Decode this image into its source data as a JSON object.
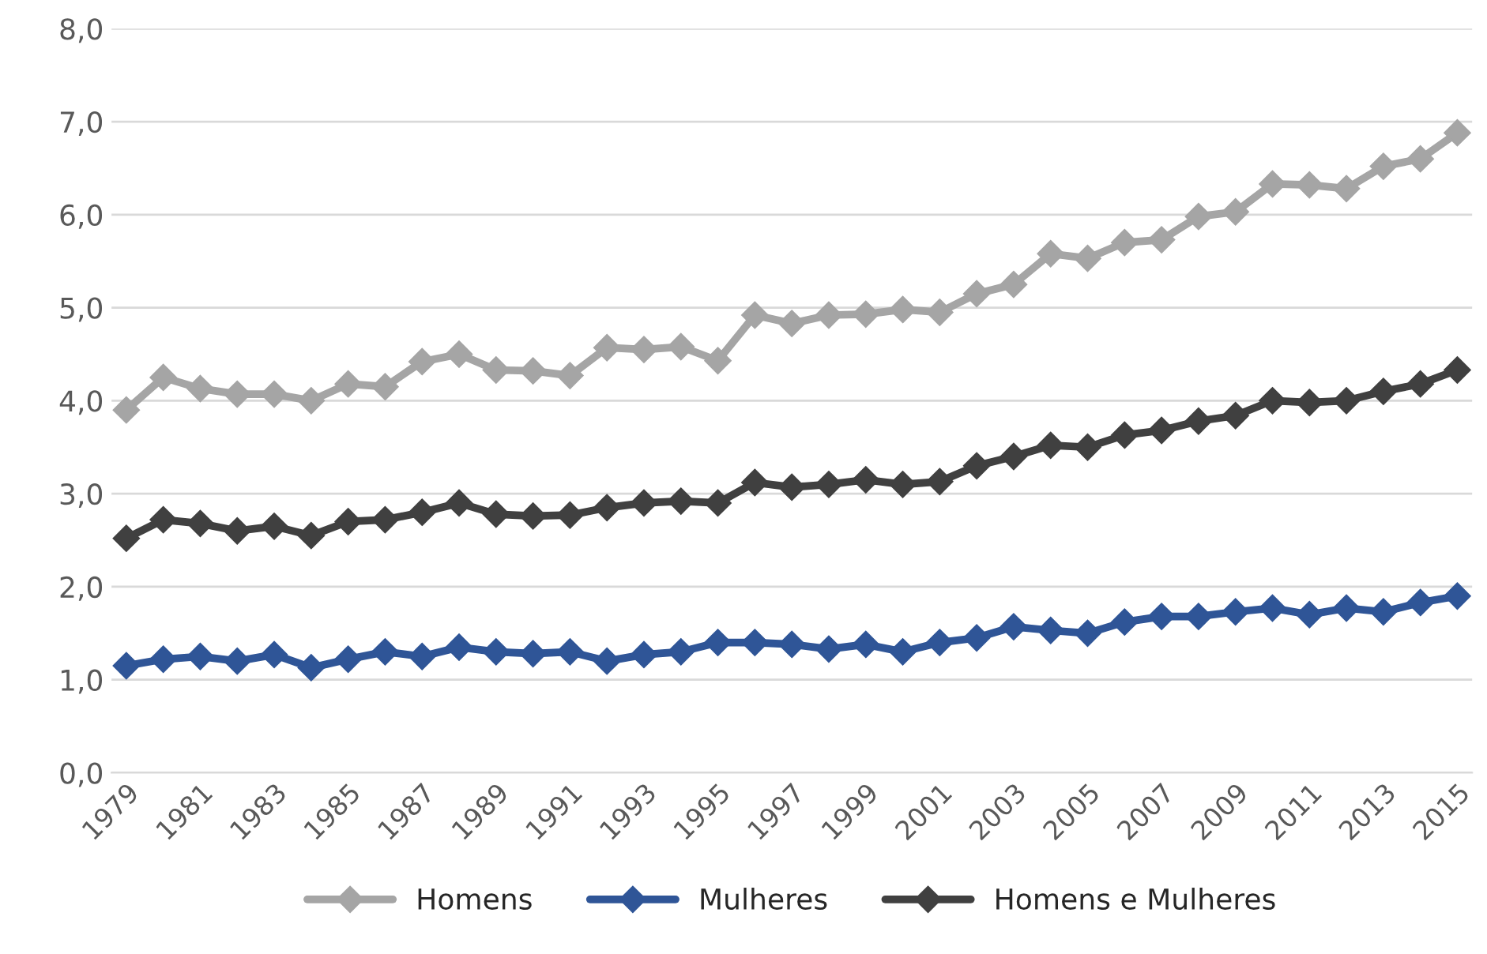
{
  "chart_data": {
    "type": "line",
    "categories": [
      "1979",
      null,
      "1981",
      null,
      "1983",
      null,
      "1985",
      null,
      "1987",
      null,
      "1989",
      null,
      "1991",
      null,
      "1993",
      null,
      "1995",
      null,
      "1997",
      null,
      "1999",
      null,
      "2001",
      null,
      "2003",
      null,
      "2005",
      null,
      "2007",
      null,
      "2009",
      null,
      "2011",
      null,
      "2013",
      null,
      "2015"
    ],
    "series": [
      {
        "name": "Homens",
        "color": "#a5a5a5",
        "values": [
          3.9,
          4.25,
          4.13,
          4.07,
          4.07,
          4.0,
          4.18,
          4.15,
          4.42,
          4.5,
          4.33,
          4.32,
          4.27,
          4.57,
          4.55,
          4.58,
          4.43,
          4.92,
          4.83,
          4.92,
          4.93,
          4.98,
          4.95,
          5.15,
          5.25,
          5.58,
          5.53,
          5.7,
          5.73,
          5.98,
          6.03,
          6.33,
          6.32,
          6.28,
          6.52,
          6.6,
          6.88
        ]
      },
      {
        "name": "Mulheres",
        "color": "#2f5597",
        "values": [
          1.15,
          1.22,
          1.25,
          1.2,
          1.27,
          1.13,
          1.22,
          1.3,
          1.25,
          1.35,
          1.3,
          1.28,
          1.3,
          1.2,
          1.27,
          1.3,
          1.4,
          1.4,
          1.38,
          1.33,
          1.38,
          1.3,
          1.4,
          1.45,
          1.57,
          1.53,
          1.5,
          1.62,
          1.68,
          1.68,
          1.73,
          1.77,
          1.7,
          1.77,
          1.73,
          1.83,
          1.9
        ]
      },
      {
        "name": "Homens e Mulheres",
        "color": "#404040",
        "values": [
          2.52,
          2.72,
          2.68,
          2.6,
          2.65,
          2.55,
          2.7,
          2.72,
          2.8,
          2.9,
          2.78,
          2.76,
          2.77,
          2.85,
          2.9,
          2.92,
          2.9,
          3.12,
          3.07,
          3.1,
          3.15,
          3.1,
          3.13,
          3.3,
          3.4,
          3.52,
          3.5,
          3.63,
          3.68,
          3.78,
          3.84,
          4.0,
          3.98,
          4.0,
          4.1,
          4.18,
          4.33
        ]
      }
    ],
    "ylim": [
      0,
      8
    ],
    "yticks": [
      {
        "value": 0,
        "label": "0,0"
      },
      {
        "value": 1,
        "label": "1,0"
      },
      {
        "value": 2,
        "label": "2,0"
      },
      {
        "value": 3,
        "label": "3,0"
      },
      {
        "value": 4,
        "label": "4,0"
      },
      {
        "value": 5,
        "label": "5,0"
      },
      {
        "value": 6,
        "label": "6,0"
      },
      {
        "value": 7,
        "label": "7,0"
      },
      {
        "value": 8,
        "label": "8,0"
      }
    ],
    "grid": "y",
    "legend": "bottom",
    "marker": "diamond",
    "line_style": "solid"
  }
}
